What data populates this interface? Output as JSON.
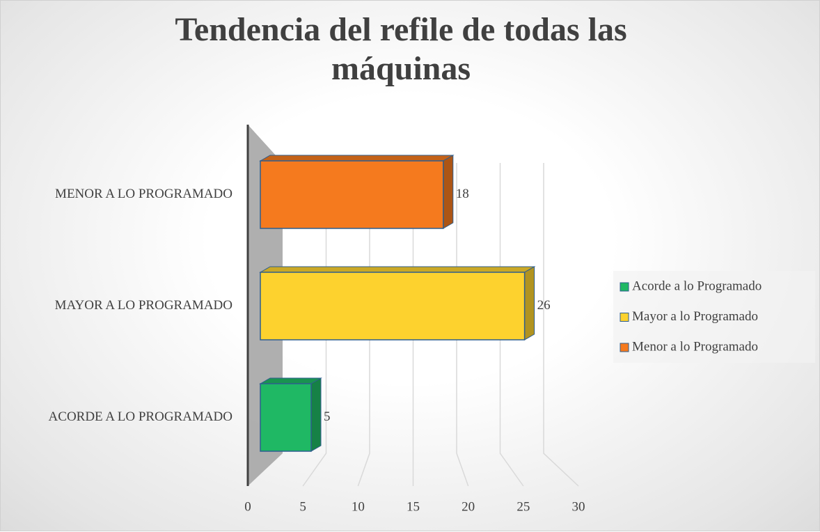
{
  "chart_data": {
    "type": "bar",
    "orientation": "horizontal",
    "title": "Tendencia del refile de todas las máquinas",
    "categories": [
      "ACORDE A LO PROGRAMADO",
      "MAYOR A LO PROGRAMADO",
      "MENOR A LO PROGRAMADO"
    ],
    "series": [
      {
        "name": "Acorde a lo Programado",
        "color": "#1fb864",
        "values": [
          5,
          null,
          null
        ]
      },
      {
        "name": "Mayor a lo Programado",
        "color": "#fdd22e",
        "values": [
          null,
          26,
          null
        ]
      },
      {
        "name": "Menor a lo Programado",
        "color": "#f57a1e",
        "values": [
          null,
          null,
          18
        ]
      }
    ],
    "xlim": [
      0,
      30
    ],
    "xticks": [
      0,
      5,
      10,
      15,
      20,
      25,
      30
    ],
    "grid": true,
    "legend": "right",
    "data_labels": true
  }
}
